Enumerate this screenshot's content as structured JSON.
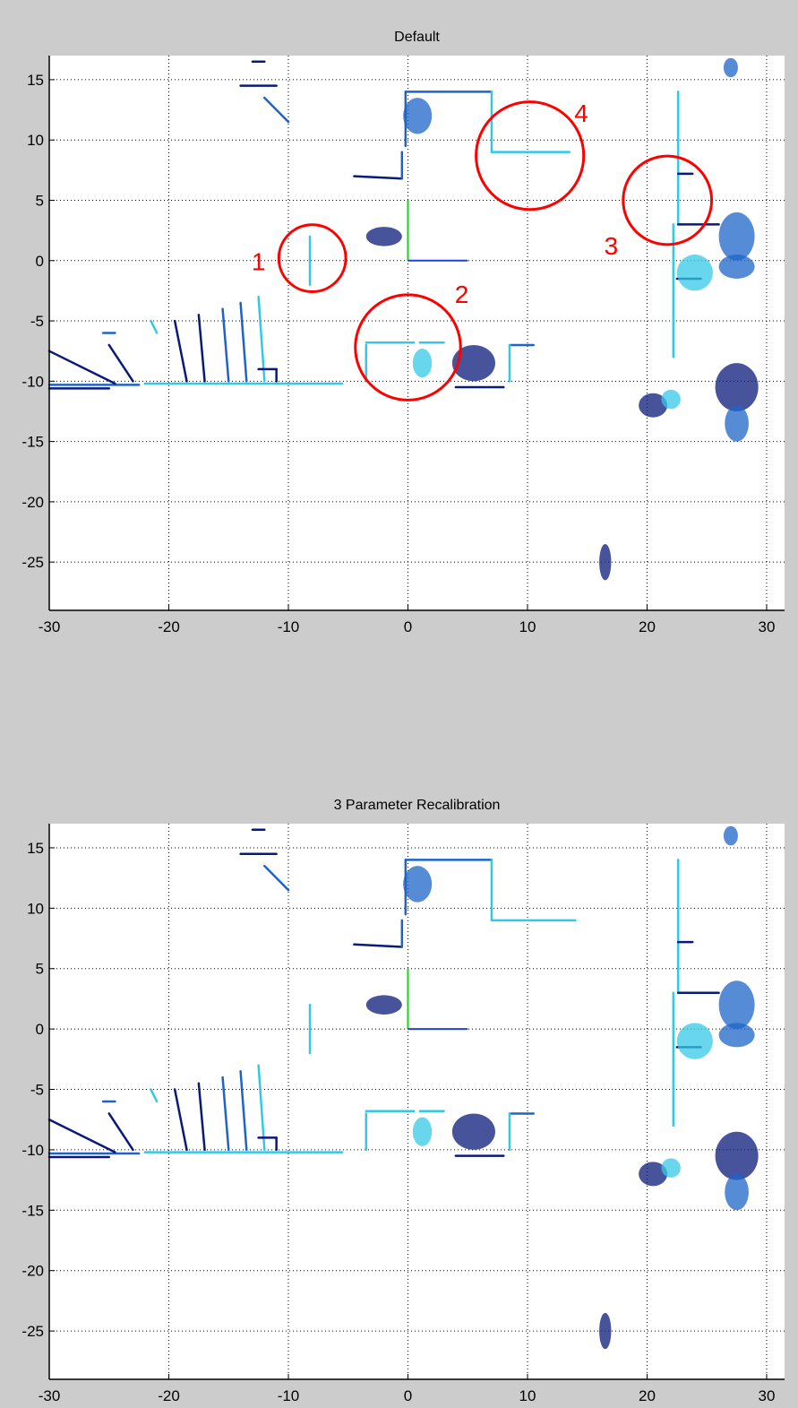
{
  "figure": {
    "background": "#cccccc",
    "colors": {
      "dark": "#0a1a7a",
      "mid": "#1e64c8",
      "light": "#35c8e6",
      "green": "#19d219",
      "blue": "#2040e0",
      "annotation": "#ff0000"
    }
  },
  "chart_data": [
    {
      "type": "scatter",
      "title": "Default",
      "xlabel": "",
      "ylabel": "",
      "xlim": [
        -30,
        31.5
      ],
      "ylim": [
        -29,
        17
      ],
      "x_ticks": [
        -30,
        -20,
        -10,
        0,
        10,
        20,
        30
      ],
      "y_ticks": [
        15,
        10,
        5,
        0,
        -5,
        -10,
        -15,
        -20,
        -25
      ],
      "x_tick_labels": [
        "-30",
        "-20",
        "-10",
        "0",
        "10",
        "20",
        "30"
      ],
      "y_tick_labels": [
        "15",
        "10",
        "5",
        "0",
        "-5",
        "-10",
        "-15",
        "-20",
        "-25"
      ],
      "grid": true,
      "origin_axes": {
        "y_axis": {
          "x": 0,
          "y": [
            0,
            5
          ],
          "color": "green"
        },
        "x_axis": {
          "x": [
            0,
            5
          ],
          "y": 0,
          "color": "blue"
        }
      },
      "segments": [
        {
          "x": [
            -30,
            -22.5
          ],
          "y": [
            -10.3,
            -10.3
          ],
          "c": "mid"
        },
        {
          "x": [
            -30,
            -25
          ],
          "y": [
            -10.6,
            -10.6
          ],
          "c": "dark"
        },
        {
          "x": [
            -30,
            -24.5
          ],
          "y": [
            -7.5,
            -10.2
          ],
          "c": "dark"
        },
        {
          "x": [
            -25,
            -23
          ],
          "y": [
            -7,
            -10
          ],
          "c": "dark"
        },
        {
          "x": [
            -25.5,
            -24.5
          ],
          "y": [
            -6,
            -6
          ],
          "c": "mid"
        },
        {
          "x": [
            -22,
            -5.5
          ],
          "y": [
            -10.2,
            -10.2
          ],
          "c": "light"
        },
        {
          "x": [
            -19.5,
            -18.5
          ],
          "y": [
            -5,
            -10
          ],
          "c": "dark"
        },
        {
          "x": [
            -17.5,
            -17
          ],
          "y": [
            -4.5,
            -10
          ],
          "c": "dark"
        },
        {
          "x": [
            -15.5,
            -15
          ],
          "y": [
            -4,
            -10
          ],
          "c": "mid"
        },
        {
          "x": [
            -14,
            -13.5
          ],
          "y": [
            -3.5,
            -10
          ],
          "c": "mid"
        },
        {
          "x": [
            -12.5,
            -12
          ],
          "y": [
            -3,
            -10
          ],
          "c": "light"
        },
        {
          "x": [
            -12.5,
            -11
          ],
          "y": [
            -9,
            -9
          ],
          "c": "dark"
        },
        {
          "x": [
            -11,
            -11
          ],
          "y": [
            -9,
            -10
          ],
          "c": "dark"
        },
        {
          "x": [
            -21.5,
            -21
          ],
          "y": [
            -5,
            -6
          ],
          "c": "light"
        },
        {
          "x": [
            -8.2,
            -8.2
          ],
          "y": [
            2,
            -2
          ],
          "c": "light"
        },
        {
          "x": [
            -14,
            -11
          ],
          "y": [
            14.5,
            14.5
          ],
          "c": "dark"
        },
        {
          "x": [
            -13,
            -12
          ],
          "y": [
            16.5,
            16.5
          ],
          "c": "dark"
        },
        {
          "x": [
            -12,
            -10
          ],
          "y": [
            13.5,
            11.5
          ],
          "c": "mid"
        },
        {
          "x": [
            -4.5,
            -0.5
          ],
          "y": [
            7,
            6.8
          ],
          "c": "dark"
        },
        {
          "x": [
            -0.5,
            -0.5
          ],
          "y": [
            6.8,
            9
          ],
          "c": "mid"
        },
        {
          "x": [
            -0.2,
            -0.2
          ],
          "y": [
            9.5,
            14
          ],
          "c": "mid"
        },
        {
          "x": [
            -0.2,
            7
          ],
          "y": [
            14,
            14
          ],
          "c": "mid"
        },
        {
          "x": [
            7,
            7
          ],
          "y": [
            14,
            9
          ],
          "c": "light"
        },
        {
          "x": [
            7,
            13.5
          ],
          "y": [
            9,
            9
          ],
          "c": "light"
        },
        {
          "x": [
            22.6,
            22.6
          ],
          "y": [
            14,
            3
          ],
          "c": "light"
        },
        {
          "x": [
            22.6,
            23.8
          ],
          "y": [
            7.2,
            7.2
          ],
          "c": "dark"
        },
        {
          "x": [
            22.6,
            26
          ],
          "y": [
            3,
            3
          ],
          "c": "dark"
        },
        {
          "x": [
            22.2,
            22.2
          ],
          "y": [
            3,
            -8
          ],
          "c": "light"
        },
        {
          "x": [
            22.5,
            24.5
          ],
          "y": [
            -1.5,
            -1.5
          ],
          "c": "dark"
        },
        {
          "x": [
            -3.5,
            0.5
          ],
          "y": [
            -6.8,
            -6.8
          ],
          "c": "light"
        },
        {
          "x": [
            1,
            3
          ],
          "y": [
            -6.8,
            -6.8
          ],
          "c": "light"
        },
        {
          "x": [
            -3.5,
            -3.5
          ],
          "y": [
            -7,
            -10
          ],
          "c": "light"
        },
        {
          "x": [
            4,
            8
          ],
          "y": [
            -10.5,
            -10.5
          ],
          "c": "dark"
        },
        {
          "x": [
            8.5,
            10.5
          ],
          "y": [
            -7,
            -7
          ],
          "c": "mid"
        },
        {
          "x": [
            8.5,
            8.5
          ],
          "y": [
            -7,
            -10
          ],
          "c": "light"
        }
      ],
      "clusters": [
        {
          "x": -2,
          "y": 2,
          "rx": 1.5,
          "ry": 0.8,
          "c": "dark"
        },
        {
          "x": 0.8,
          "y": 12,
          "rx": 1.2,
          "ry": 1.5,
          "c": "mid"
        },
        {
          "x": 5.5,
          "y": -8.5,
          "rx": 1.8,
          "ry": 1.5,
          "c": "dark"
        },
        {
          "x": 1.2,
          "y": -8.5,
          "rx": 0.8,
          "ry": 1.2,
          "c": "light"
        },
        {
          "x": 24,
          "y": -1,
          "rx": 1.5,
          "ry": 1.5,
          "c": "light"
        },
        {
          "x": 27.5,
          "y": 2,
          "rx": 1.5,
          "ry": 2,
          "c": "mid"
        },
        {
          "x": 27.5,
          "y": -0.5,
          "rx": 1.5,
          "ry": 1,
          "c": "mid"
        },
        {
          "x": 27.5,
          "y": -10.5,
          "rx": 1.8,
          "ry": 2,
          "c": "dark"
        },
        {
          "x": 27.5,
          "y": -13.5,
          "rx": 1,
          "ry": 1.5,
          "c": "mid"
        },
        {
          "x": 20.5,
          "y": -12,
          "rx": 1.2,
          "ry": 1,
          "c": "dark"
        },
        {
          "x": 22,
          "y": -11.5,
          "rx": 0.8,
          "ry": 0.8,
          "c": "light"
        },
        {
          "x": 16.5,
          "y": -25,
          "rx": 0.5,
          "ry": 1.5,
          "c": "dark"
        },
        {
          "x": 27,
          "y": 16,
          "rx": 0.6,
          "ry": 0.8,
          "c": "mid"
        }
      ],
      "annotations": [
        {
          "label": "1",
          "cx": -8,
          "cy": 0.2,
          "r": 2.8,
          "tx": -12.5,
          "ty": -0.8
        },
        {
          "label": "2",
          "cx": 0,
          "cy": -7.2,
          "r": 4.4,
          "tx": 4.5,
          "ty": -3.5
        },
        {
          "label": "3",
          "cx": 21.7,
          "cy": 5,
          "r": 3.7,
          "tx": 17,
          "ty": 0.5
        },
        {
          "label": "4",
          "cx": 10.2,
          "cy": 8.7,
          "r": 4.5,
          "tx": 14.5,
          "ty": 11.5
        }
      ]
    },
    {
      "type": "scatter",
      "title": "3 Parameter Recalibration",
      "xlabel": "",
      "ylabel": "",
      "xlim": [
        -30,
        31.5
      ],
      "ylim": [
        -29,
        17
      ],
      "x_ticks": [
        -30,
        -20,
        -10,
        0,
        10,
        20,
        30
      ],
      "y_ticks": [
        15,
        10,
        5,
        0,
        -5,
        -10,
        -15,
        -20,
        -25
      ],
      "x_tick_labels": [
        "-30",
        "-20",
        "-10",
        "0",
        "10",
        "20",
        "30"
      ],
      "y_tick_labels": [
        "15",
        "10",
        "5",
        "0",
        "-5",
        "-10",
        "-15",
        "-20",
        "-25"
      ],
      "grid": true,
      "origin_axes": {
        "y_axis": {
          "x": 0,
          "y": [
            0,
            5
          ],
          "color": "green"
        },
        "x_axis": {
          "x": [
            0,
            5
          ],
          "y": 0,
          "color": "blue"
        }
      },
      "segments": [
        {
          "x": [
            -30,
            -22.5
          ],
          "y": [
            -10.3,
            -10.3
          ],
          "c": "mid"
        },
        {
          "x": [
            -30,
            -25
          ],
          "y": [
            -10.6,
            -10.6
          ],
          "c": "dark"
        },
        {
          "x": [
            -30,
            -24.5
          ],
          "y": [
            -7.5,
            -10.2
          ],
          "c": "dark"
        },
        {
          "x": [
            -25,
            -23
          ],
          "y": [
            -7,
            -10
          ],
          "c": "dark"
        },
        {
          "x": [
            -25.5,
            -24.5
          ],
          "y": [
            -6,
            -6
          ],
          "c": "mid"
        },
        {
          "x": [
            -22,
            -5.5
          ],
          "y": [
            -10.2,
            -10.2
          ],
          "c": "light"
        },
        {
          "x": [
            -19.5,
            -18.5
          ],
          "y": [
            -5,
            -10
          ],
          "c": "dark"
        },
        {
          "x": [
            -17.5,
            -17
          ],
          "y": [
            -4.5,
            -10
          ],
          "c": "dark"
        },
        {
          "x": [
            -15.5,
            -15
          ],
          "y": [
            -4,
            -10
          ],
          "c": "mid"
        },
        {
          "x": [
            -14,
            -13.5
          ],
          "y": [
            -3.5,
            -10
          ],
          "c": "mid"
        },
        {
          "x": [
            -12.5,
            -12
          ],
          "y": [
            -3,
            -10
          ],
          "c": "light"
        },
        {
          "x": [
            -12.5,
            -11
          ],
          "y": [
            -9,
            -9
          ],
          "c": "dark"
        },
        {
          "x": [
            -11,
            -11
          ],
          "y": [
            -9,
            -10
          ],
          "c": "dark"
        },
        {
          "x": [
            -21.5,
            -21
          ],
          "y": [
            -5,
            -6
          ],
          "c": "light"
        },
        {
          "x": [
            -8.2,
            -8.2
          ],
          "y": [
            2,
            -2
          ],
          "c": "light"
        },
        {
          "x": [
            -14,
            -11
          ],
          "y": [
            14.5,
            14.5
          ],
          "c": "dark"
        },
        {
          "x": [
            -13,
            -12
          ],
          "y": [
            16.5,
            16.5
          ],
          "c": "dark"
        },
        {
          "x": [
            -12,
            -10
          ],
          "y": [
            13.5,
            11.5
          ],
          "c": "mid"
        },
        {
          "x": [
            -4.5,
            -0.5
          ],
          "y": [
            7,
            6.8
          ],
          "c": "dark"
        },
        {
          "x": [
            -0.5,
            -0.5
          ],
          "y": [
            6.8,
            9
          ],
          "c": "mid"
        },
        {
          "x": [
            -0.2,
            -0.2
          ],
          "y": [
            9.5,
            14
          ],
          "c": "mid"
        },
        {
          "x": [
            -0.2,
            7
          ],
          "y": [
            14,
            14
          ],
          "c": "mid"
        },
        {
          "x": [
            7,
            7
          ],
          "y": [
            14,
            9
          ],
          "c": "light"
        },
        {
          "x": [
            7,
            14
          ],
          "y": [
            9,
            9
          ],
          "c": "light"
        },
        {
          "x": [
            22.6,
            22.6
          ],
          "y": [
            14,
            3
          ],
          "c": "light"
        },
        {
          "x": [
            22.6,
            23.8
          ],
          "y": [
            7.2,
            7.2
          ],
          "c": "dark"
        },
        {
          "x": [
            22.6,
            26
          ],
          "y": [
            3,
            3
          ],
          "c": "dark"
        },
        {
          "x": [
            22.2,
            22.2
          ],
          "y": [
            3,
            -8
          ],
          "c": "light"
        },
        {
          "x": [
            22.5,
            24.5
          ],
          "y": [
            -1.5,
            -1.5
          ],
          "c": "dark"
        },
        {
          "x": [
            -3.5,
            0.5
          ],
          "y": [
            -6.8,
            -6.8
          ],
          "c": "light"
        },
        {
          "x": [
            1,
            3
          ],
          "y": [
            -6.8,
            -6.8
          ],
          "c": "light"
        },
        {
          "x": [
            -3.5,
            -3.5
          ],
          "y": [
            -7,
            -10
          ],
          "c": "light"
        },
        {
          "x": [
            4,
            8
          ],
          "y": [
            -10.5,
            -10.5
          ],
          "c": "dark"
        },
        {
          "x": [
            8.5,
            10.5
          ],
          "y": [
            -7,
            -7
          ],
          "c": "mid"
        },
        {
          "x": [
            8.5,
            8.5
          ],
          "y": [
            -7,
            -10
          ],
          "c": "light"
        }
      ],
      "clusters": [
        {
          "x": -2,
          "y": 2,
          "rx": 1.5,
          "ry": 0.8,
          "c": "dark"
        },
        {
          "x": 0.8,
          "y": 12,
          "rx": 1.2,
          "ry": 1.5,
          "c": "mid"
        },
        {
          "x": 5.5,
          "y": -8.5,
          "rx": 1.8,
          "ry": 1.5,
          "c": "dark"
        },
        {
          "x": 1.2,
          "y": -8.5,
          "rx": 0.8,
          "ry": 1.2,
          "c": "light"
        },
        {
          "x": 24,
          "y": -1,
          "rx": 1.5,
          "ry": 1.5,
          "c": "light"
        },
        {
          "x": 27.5,
          "y": 2,
          "rx": 1.5,
          "ry": 2,
          "c": "mid"
        },
        {
          "x": 27.5,
          "y": -0.5,
          "rx": 1.5,
          "ry": 1,
          "c": "mid"
        },
        {
          "x": 27.5,
          "y": -10.5,
          "rx": 1.8,
          "ry": 2,
          "c": "dark"
        },
        {
          "x": 27.5,
          "y": -13.5,
          "rx": 1,
          "ry": 1.5,
          "c": "mid"
        },
        {
          "x": 20.5,
          "y": -12,
          "rx": 1.2,
          "ry": 1,
          "c": "dark"
        },
        {
          "x": 22,
          "y": -11.5,
          "rx": 0.8,
          "ry": 0.8,
          "c": "light"
        },
        {
          "x": 16.5,
          "y": -25,
          "rx": 0.5,
          "ry": 1.5,
          "c": "dark"
        },
        {
          "x": 27,
          "y": 16,
          "rx": 0.6,
          "ry": 0.8,
          "c": "mid"
        }
      ],
      "annotations": []
    }
  ]
}
